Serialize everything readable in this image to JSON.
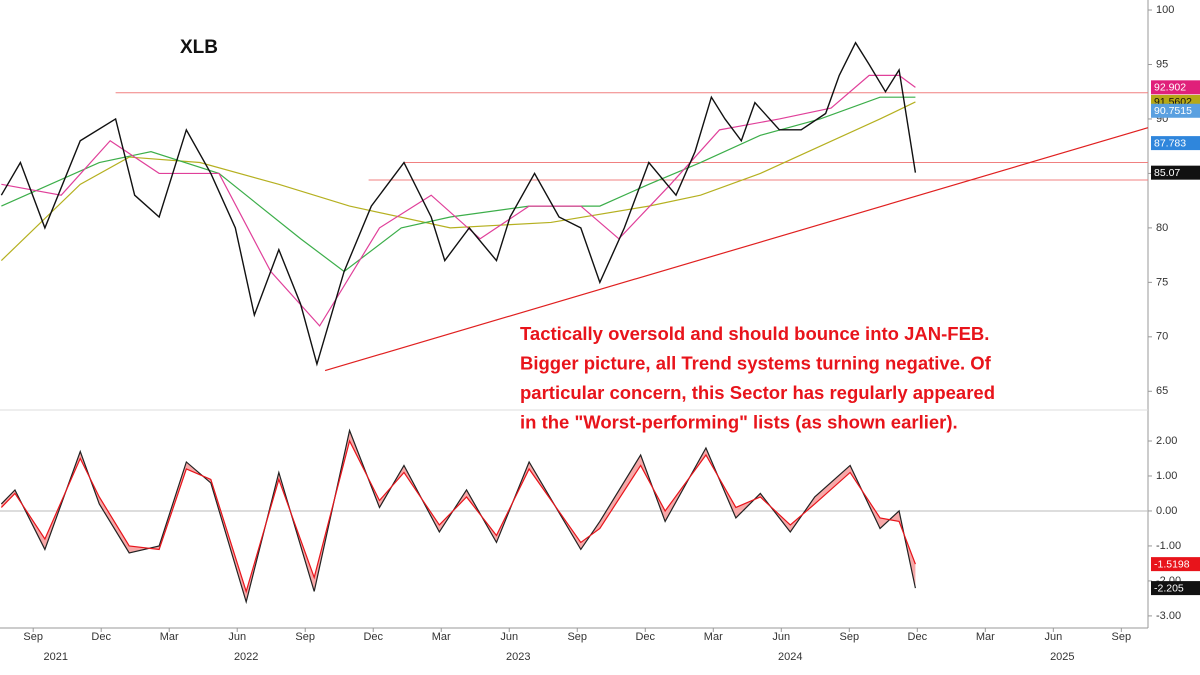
{
  "chart_data": [
    {
      "type": "line",
      "title": "XLB",
      "xlim": [
        2021.545,
        2025.765
      ],
      "ylim": [
        64.2,
        100.92
      ],
      "yticks": [
        65,
        70,
        75,
        80,
        85,
        90,
        95,
        100
      ],
      "series": [
        {
          "color": "#b5b020",
          "x": [
            2021.55,
            2021.84,
            2022.02,
            2022.28,
            2022.57,
            2022.83,
            2023.2,
            2023.57,
            2023.93,
            2024.12,
            2024.34,
            2024.56,
            2024.78,
            2024.91
          ],
          "values": [
            77,
            84,
            86.5,
            86,
            84,
            82,
            80,
            80.5,
            82,
            83,
            85,
            87.5,
            90,
            91.5602
          ]
        },
        {
          "color": "#3cae4a",
          "x": [
            2021.55,
            2021.91,
            2022.1,
            2022.35,
            2022.65,
            2022.81,
            2023.02,
            2023.2,
            2023.49,
            2023.75,
            2023.93,
            2024.12,
            2024.34,
            2024.56,
            2024.78,
            2024.91
          ],
          "values": [
            82,
            86,
            87,
            85,
            79,
            76,
            80,
            81,
            82,
            82,
            84,
            86,
            88.5,
            90,
            92,
            92
          ]
        },
        {
          "color": "#e0409a",
          "x": [
            2021.55,
            2021.77,
            2021.95,
            2022.13,
            2022.35,
            2022.54,
            2022.72,
            2022.94,
            2023.13,
            2023.31,
            2023.49,
            2023.68,
            2023.82,
            2024.01,
            2024.19,
            2024.41,
            2024.6,
            2024.74,
            2024.85,
            2024.91
          ],
          "values": [
            84,
            83,
            88,
            85,
            85,
            76,
            71,
            80,
            83,
            79,
            82,
            82,
            79,
            84,
            89,
            90,
            91,
            94,
            94,
            92.902
          ]
        },
        {
          "color": "#111111",
          "x": [
            2021.55,
            2021.62,
            2021.71,
            2021.84,
            2021.97,
            2022.04,
            2022.13,
            2022.23,
            2022.32,
            2022.41,
            2022.48,
            2022.57,
            2022.65,
            2022.71,
            2022.81,
            2022.91,
            2023.03,
            2023.13,
            2023.18,
            2023.27,
            2023.37,
            2023.42,
            2023.51,
            2023.6,
            2023.68,
            2023.75,
            2023.84,
            2023.93,
            2024.03,
            2024.1,
            2024.16,
            2024.21,
            2024.27,
            2024.32,
            2024.41,
            2024.49,
            2024.58,
            2024.63,
            2024.69,
            2024.74,
            2024.8,
            2024.85,
            2024.91
          ],
          "values": [
            83,
            86,
            80,
            88,
            90,
            83,
            81,
            89,
            85,
            80,
            72,
            78,
            73,
            67.5,
            76,
            82,
            86,
            81,
            77,
            80,
            77,
            81,
            85,
            81,
            80,
            75,
            80,
            86,
            83,
            87,
            92,
            90,
            88,
            91.5,
            89,
            89,
            90.5,
            94,
            97,
            95,
            92.5,
            94.5,
            85.07
          ]
        }
      ],
      "levels": [
        {
          "y": 92.4,
          "from": 2021.97
        },
        {
          "y": 86.0,
          "from": 2023.03
        },
        {
          "y": 84.4,
          "from": 2022.9
        }
      ],
      "trendline": {
        "x": [
          2022.74,
          2025.765
        ],
        "y": [
          66.9,
          89.2
        ]
      },
      "price_tags": [
        {
          "value": 92.902,
          "color": "#e0207a"
        },
        {
          "value": 91.5602,
          "color": "#b5a817"
        },
        {
          "value": 90.7515,
          "color": "#5aa0e0"
        },
        {
          "value": 87.783,
          "color": "#2f86dc"
        },
        {
          "value": 85.07,
          "color": "#111111"
        }
      ],
      "annotation": [
        "Tactically oversold and should bounce into JAN-FEB.",
        "Bigger picture, all Trend systems turning negative. Of",
        "particular concern, this Sector has regularly appeared",
        "in the \"Worst-performing\" lists (as shown earlier)."
      ]
    },
    {
      "type": "line",
      "fill_between": true,
      "xlim": [
        2021.545,
        2025.765
      ],
      "ylim": [
        -3.26,
        2.6
      ],
      "yticks": [
        {
          "value": 2,
          "label": "2.00"
        },
        {
          "value": 1,
          "label": "1.00"
        },
        {
          "value": 0,
          "label": "0.00"
        },
        {
          "value": -1,
          "label": "-1.00"
        },
        {
          "value": -2,
          "label": "-2.00"
        },
        {
          "value": -3,
          "label": "-3.00"
        }
      ],
      "x": [
        2021.55,
        2021.6,
        2021.71,
        2021.84,
        2021.91,
        2022.02,
        2022.13,
        2022.23,
        2022.32,
        2022.45,
        2022.57,
        2022.7,
        2022.83,
        2022.94,
        2023.03,
        2023.16,
        2023.26,
        2023.37,
        2023.49,
        2023.68,
        2023.75,
        2023.9,
        2023.99,
        2024.14,
        2024.25,
        2024.34,
        2024.45,
        2024.54,
        2024.67,
        2024.78,
        2024.85,
        2024.91
      ],
      "series": [
        {
          "color": "#222222",
          "values": [
            0.2,
            0.6,
            -1.1,
            1.7,
            0.2,
            -1.2,
            -1.0,
            1.4,
            0.8,
            -2.6,
            1.1,
            -2.3,
            2.3,
            0.1,
            1.3,
            -0.6,
            0.6,
            -0.9,
            1.4,
            -1.1,
            -0.3,
            1.6,
            -0.3,
            1.8,
            -0.2,
            0.5,
            -0.6,
            0.4,
            1.3,
            -0.5,
            0.0,
            -2.205
          ]
        },
        {
          "color": "#e8141b",
          "values": [
            0.1,
            0.5,
            -0.8,
            1.5,
            0.4,
            -1.0,
            -1.1,
            1.2,
            0.9,
            -2.3,
            0.9,
            -1.9,
            2.0,
            0.3,
            1.1,
            -0.4,
            0.4,
            -0.7,
            1.2,
            -0.9,
            -0.5,
            1.3,
            0.0,
            1.6,
            0.1,
            0.4,
            -0.4,
            0.2,
            1.1,
            -0.2,
            -0.3,
            -1.5198
          ]
        }
      ],
      "price_tags": [
        {
          "value": -1.5198,
          "color": "#e8141b"
        },
        {
          "value": -2.205,
          "color": "#111111"
        }
      ],
      "xticks": [
        {
          "value": 2021.667,
          "label": "Sep"
        },
        {
          "value": 2021.917,
          "label": "Dec"
        },
        {
          "value": 2022.167,
          "label": "Mar"
        },
        {
          "value": 2022.417,
          "label": "Jun"
        },
        {
          "value": 2022.667,
          "label": "Sep"
        },
        {
          "value": 2022.917,
          "label": "Dec"
        },
        {
          "value": 2023.167,
          "label": "Mar"
        },
        {
          "value": 2023.417,
          "label": "Jun"
        },
        {
          "value": 2023.667,
          "label": "Sep"
        },
        {
          "value": 2023.917,
          "label": "Dec"
        },
        {
          "value": 2024.167,
          "label": "Mar"
        },
        {
          "value": 2024.417,
          "label": "Jun"
        },
        {
          "value": 2024.667,
          "label": "Sep"
        },
        {
          "value": 2024.917,
          "label": "Dec"
        },
        {
          "value": 2025.167,
          "label": "Mar"
        },
        {
          "value": 2025.417,
          "label": "Jun"
        },
        {
          "value": 2025.667,
          "label": "Sep"
        }
      ],
      "year_ticks": [
        {
          "value": 2021.75,
          "label": "2021"
        },
        {
          "value": 2022.45,
          "label": "2022"
        },
        {
          "value": 2023.45,
          "label": "2023"
        },
        {
          "value": 2024.45,
          "label": "2024"
        },
        {
          "value": 2025.45,
          "label": "2025"
        }
      ]
    }
  ]
}
